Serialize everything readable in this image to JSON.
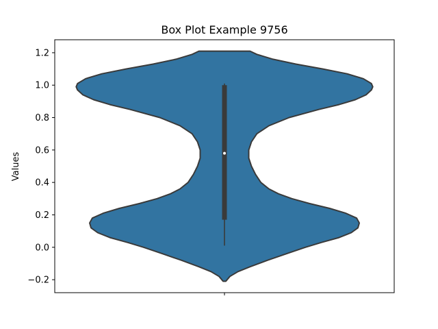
{
  "chart_data": {
    "type": "violin",
    "title": "Box Plot Example 9756",
    "xlabel": "",
    "ylabel": "Values",
    "categories": [
      ""
    ],
    "ylim": [
      -0.28,
      1.28
    ],
    "yticks": [
      -0.2,
      0.0,
      0.2,
      0.4,
      0.6,
      0.8,
      1.0,
      1.2
    ],
    "ytick_labels": [
      "−0.2",
      "0.0",
      "0.2",
      "0.4",
      "0.6",
      "0.8",
      "1.0",
      "1.2"
    ],
    "grid": false,
    "violin": {
      "color": "#3274a1",
      "edge_color": "#3a3a3a",
      "extent": [
        -0.21,
        1.21
      ],
      "density": [
        [
          -0.21,
          0.01
        ],
        [
          -0.18,
          0.04
        ],
        [
          -0.15,
          0.1
        ],
        [
          -0.12,
          0.19
        ],
        [
          -0.08,
          0.32
        ],
        [
          -0.04,
          0.46
        ],
        [
          0.0,
          0.6
        ],
        [
          0.03,
          0.72
        ],
        [
          0.06,
          0.85
        ],
        [
          0.09,
          0.94
        ],
        [
          0.12,
          0.99
        ],
        [
          0.15,
          1.0
        ],
        [
          0.18,
          0.98
        ],
        [
          0.21,
          0.9
        ],
        [
          0.24,
          0.78
        ],
        [
          0.27,
          0.63
        ],
        [
          0.3,
          0.5
        ],
        [
          0.33,
          0.4
        ],
        [
          0.36,
          0.33
        ],
        [
          0.4,
          0.27
        ],
        [
          0.45,
          0.23
        ],
        [
          0.5,
          0.2
        ],
        [
          0.55,
          0.18
        ],
        [
          0.6,
          0.18
        ],
        [
          0.65,
          0.2
        ],
        [
          0.7,
          0.24
        ],
        [
          0.75,
          0.33
        ],
        [
          0.8,
          0.48
        ],
        [
          0.85,
          0.7
        ],
        [
          0.88,
          0.85
        ],
        [
          0.91,
          0.97
        ],
        [
          0.94,
          1.05
        ],
        [
          0.97,
          1.09
        ],
        [
          0.99,
          1.1
        ],
        [
          1.01,
          1.09
        ],
        [
          1.04,
          1.03
        ],
        [
          1.07,
          0.91
        ],
        [
          1.1,
          0.73
        ],
        [
          1.13,
          0.53
        ],
        [
          1.16,
          0.36
        ],
        [
          1.19,
          0.24
        ],
        [
          1.21,
          0.19
        ]
      ],
      "box": {
        "q1": 0.17,
        "median": 0.58,
        "q3": 1.0,
        "whisker_low": 0.01,
        "whisker_high": 1.01
      }
    }
  }
}
